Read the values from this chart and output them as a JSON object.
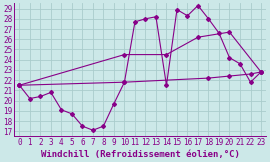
{
  "background_color": "#cce8e8",
  "grid_color": "#aacccc",
  "line_color": "#880088",
  "xlim": [
    -0.5,
    23.5
  ],
  "ylim": [
    16.5,
    29.5
  ],
  "yticks": [
    17,
    18,
    19,
    20,
    21,
    22,
    23,
    24,
    25,
    26,
    27,
    28,
    29
  ],
  "xticks": [
    0,
    1,
    2,
    3,
    4,
    5,
    6,
    7,
    8,
    9,
    10,
    11,
    12,
    13,
    14,
    15,
    16,
    17,
    18,
    19,
    20,
    21,
    22,
    23
  ],
  "xlabel": "Windchill (Refroidissement éolien,°C)",
  "series1_x": [
    0,
    1,
    2,
    3,
    4,
    5,
    6,
    7,
    8,
    9,
    10,
    11,
    12,
    13,
    14,
    15,
    16,
    17,
    18,
    19,
    20,
    21,
    22,
    23
  ],
  "series1_y": [
    21.5,
    20.2,
    20.4,
    20.8,
    19.1,
    18.7,
    17.5,
    17.1,
    17.5,
    19.7,
    21.8,
    27.7,
    28.0,
    28.2,
    21.5,
    28.9,
    28.3,
    29.3,
    28.0,
    26.6,
    24.2,
    23.6,
    21.8,
    22.8
  ],
  "series2_x": [
    0,
    10,
    14,
    17,
    20,
    23
  ],
  "series2_y": [
    21.5,
    24.5,
    24.5,
    26.2,
    26.7,
    22.8
  ],
  "series3_x": [
    0,
    10,
    18,
    20,
    22,
    23
  ],
  "series3_y": [
    21.5,
    21.8,
    22.2,
    22.4,
    22.6,
    22.8
  ],
  "xlabel_fontsize": 6.5,
  "tick_fontsize": 5.5
}
